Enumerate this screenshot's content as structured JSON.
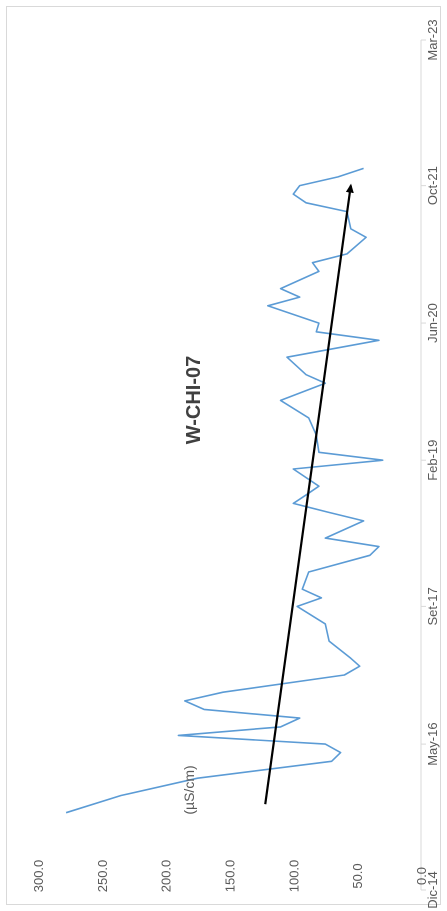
{
  "chart_data": {
    "type": "line",
    "title": "W-CHI-07",
    "ylabel": "(µS/cm)",
    "xlabel": "",
    "ylim": [
      0,
      300
    ],
    "xlim": [
      "2014-12-01",
      "2023-03-01"
    ],
    "y_ticks": [
      "0.0",
      "50.0",
      "100.0",
      "150.0",
      "200.0",
      "250.0",
      "300.0"
    ],
    "x_ticks": [
      "Dic-14",
      "May-16",
      "Set-17",
      "Feb-19",
      "Jun-20",
      "Oct-21",
      "Mar-23"
    ],
    "x_tick_dates": [
      "2014-12-01",
      "2016-05-01",
      "2017-09-01",
      "2019-02-01",
      "2020-06-01",
      "2021-10-01",
      "2023-03-01"
    ],
    "grid": false,
    "legend": "none",
    "series": [
      {
        "color": "#5b9bd5",
        "points": [
          {
            "x": "2015-09-01",
            "y": 278
          },
          {
            "x": "2015-11-01",
            "y": 235
          },
          {
            "x": "2016-01-01",
            "y": 175
          },
          {
            "x": "2016-03-01",
            "y": 70
          },
          {
            "x": "2016-04-01",
            "y": 63
          },
          {
            "x": "2016-05-01",
            "y": 75
          },
          {
            "x": "2016-06-01",
            "y": 190
          },
          {
            "x": "2016-07-01",
            "y": 110
          },
          {
            "x": "2016-08-01",
            "y": 95
          },
          {
            "x": "2016-09-01",
            "y": 170
          },
          {
            "x": "2016-10-01",
            "y": 185
          },
          {
            "x": "2016-11-01",
            "y": 155
          },
          {
            "x": "2017-01-01",
            "y": 60
          },
          {
            "x": "2017-02-01",
            "y": 48
          },
          {
            "x": "2017-03-01",
            "y": 55
          },
          {
            "x": "2017-05-01",
            "y": 72
          },
          {
            "x": "2017-07-01",
            "y": 75
          },
          {
            "x": "2017-09-01",
            "y": 97
          },
          {
            "x": "2017-10-01",
            "y": 78
          },
          {
            "x": "2017-11-01",
            "y": 93
          },
          {
            "x": "2018-01-01",
            "y": 88
          },
          {
            "x": "2018-03-01",
            "y": 40
          },
          {
            "x": "2018-04-01",
            "y": 33
          },
          {
            "x": "2018-05-01",
            "y": 75
          },
          {
            "x": "2018-07-01",
            "y": 45
          },
          {
            "x": "2018-08-01",
            "y": 73
          },
          {
            "x": "2018-09-01",
            "y": 100
          },
          {
            "x": "2018-10-01",
            "y": 90
          },
          {
            "x": "2018-11-01",
            "y": 80
          },
          {
            "x": "2019-01-01",
            "y": 100
          },
          {
            "x": "2019-02-01",
            "y": 30
          },
          {
            "x": "2019-03-01",
            "y": 80
          },
          {
            "x": "2019-05-01",
            "y": 82
          },
          {
            "x": "2019-07-01",
            "y": 88
          },
          {
            "x": "2019-09-01",
            "y": 110
          },
          {
            "x": "2019-11-01",
            "y": 75
          },
          {
            "x": "2019-12-01",
            "y": 90
          },
          {
            "x": "2020-02-01",
            "y": 105
          },
          {
            "x": "2020-04-01",
            "y": 33
          },
          {
            "x": "2020-05-01",
            "y": 82
          },
          {
            "x": "2020-06-01",
            "y": 80
          },
          {
            "x": "2020-08-01",
            "y": 120
          },
          {
            "x": "2020-09-01",
            "y": 95
          },
          {
            "x": "2020-10-01",
            "y": 110
          },
          {
            "x": "2020-12-01",
            "y": 80
          },
          {
            "x": "2021-01-01",
            "y": 85
          },
          {
            "x": "2021-02-01",
            "y": 58
          },
          {
            "x": "2021-04-01",
            "y": 43
          },
          {
            "x": "2021-05-01",
            "y": 55
          },
          {
            "x": "2021-07-01",
            "y": 58
          },
          {
            "x": "2021-08-01",
            "y": 90
          },
          {
            "x": "2021-09-01",
            "y": 100
          },
          {
            "x": "2021-10-01",
            "y": 95
          },
          {
            "x": "2021-11-01",
            "y": 65
          },
          {
            "x": "2021-12-01",
            "y": 45
          }
        ]
      }
    ],
    "trendline": {
      "color": "#000000",
      "start": {
        "x": "2015-10-01",
        "y": 122
      },
      "end": {
        "x": "2021-10-01",
        "y": 55
      },
      "arrow": true
    }
  }
}
